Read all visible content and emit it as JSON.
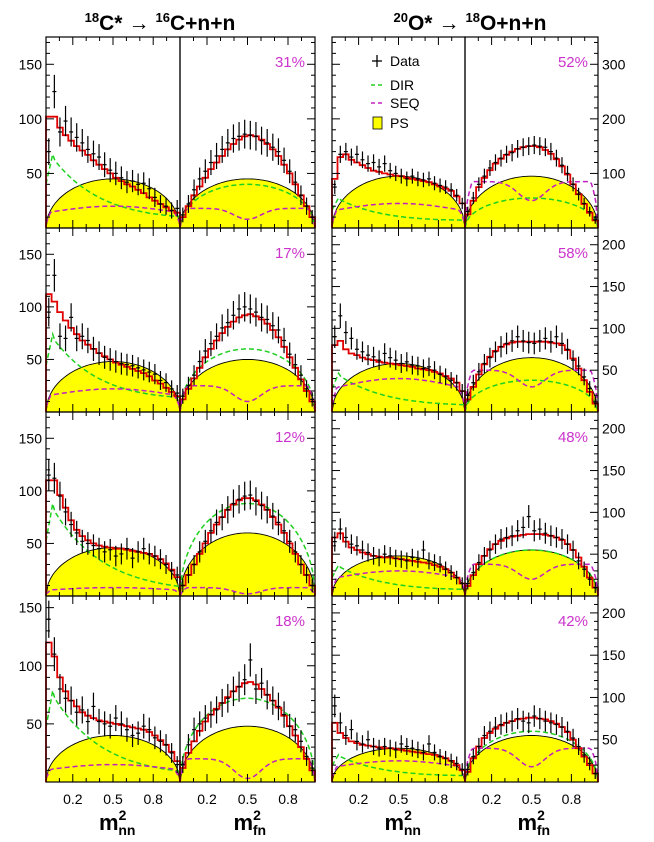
{
  "figure": {
    "titles": [
      {
        "sup1": "18",
        "a": "C*",
        "arrow": "→",
        "sup2": "16",
        "b": "C+n+n"
      },
      {
        "sup1": "20",
        "a": "O*",
        "arrow": "→",
        "sup2": "18",
        "b": "O+n+n"
      }
    ],
    "xlabels": [
      {
        "base": "m",
        "sup": "2",
        "sub": "nn"
      },
      {
        "base": "m",
        "sup": "2",
        "sub": "fn"
      },
      {
        "base": "m",
        "sup": "2",
        "sub": "nn"
      },
      {
        "base": "m",
        "sup": "2",
        "sub": "fn"
      }
    ],
    "xtick_labels": [
      "0.2",
      "0.5",
      "0.8"
    ],
    "legend": {
      "placement": "top-left of right group",
      "entries": [
        "Data",
        "DIR",
        "SEQ",
        "PS"
      ]
    },
    "colors": {
      "data": "#000000",
      "fit": "#e00000",
      "dir": "#20d020",
      "seq": "#c020c0",
      "ps": "#ffff00",
      "ps_edge": "#000000",
      "percent": "#cc33cc"
    }
  },
  "chart_data": [
    {
      "type": "histogram",
      "system": "18C*",
      "row": 1,
      "panel": "nn",
      "ylim": [
        0,
        175
      ],
      "yticks": [
        50,
        100,
        150
      ],
      "percent": null,
      "data_y": [
        70,
        125,
        88,
        98,
        88,
        83,
        78,
        72,
        68,
        65,
        58,
        53,
        50,
        46,
        42,
        43,
        40,
        41,
        36,
        28,
        22,
        20,
        16,
        18
      ],
      "fit_y": [
        102,
        102,
        92,
        85,
        80,
        75,
        71,
        67,
        62,
        58,
        54,
        50,
        46,
        43,
        40,
        38,
        35,
        32,
        28,
        25,
        22,
        19,
        16,
        14
      ],
      "dir_peak": 73,
      "dir_end": 5,
      "seq_level": 20,
      "ps_peak": 45
    },
    {
      "type": "histogram",
      "system": "18C*",
      "row": 1,
      "panel": "fn",
      "ylim": [
        0,
        175
      ],
      "yticks": [
        50,
        100,
        150
      ],
      "percent": "31%",
      "data_y": [
        12,
        22,
        35,
        45,
        52,
        60,
        66,
        72,
        78,
        82,
        84,
        86,
        85,
        84,
        80,
        78,
        74,
        70,
        62,
        52,
        42,
        30,
        20,
        10
      ],
      "fit_y": [
        10,
        20,
        30,
        38,
        46,
        54,
        60,
        66,
        72,
        77,
        81,
        84,
        85,
        84,
        81,
        77,
        72,
        66,
        58,
        50,
        40,
        30,
        20,
        10
      ],
      "dir_peak": 40,
      "seq_level": 18,
      "seq_dip": 8,
      "ps_peak": 45
    },
    {
      "type": "histogram",
      "system": "20O*",
      "row": 1,
      "panel": "nn",
      "ylim": [
        0,
        350
      ],
      "yticks": [
        100,
        200,
        300
      ],
      "percent": null,
      "data_y": [
        75,
        135,
        140,
        130,
        135,
        125,
        118,
        120,
        112,
        118,
        105,
        100,
        95,
        90,
        95,
        90,
        88,
        90,
        82,
        78,
        75,
        70,
        60,
        45
      ],
      "fit_y": [
        90,
        130,
        135,
        125,
        120,
        115,
        110,
        105,
        103,
        100,
        98,
        96,
        95,
        92,
        90,
        88,
        86,
        84,
        80,
        76,
        72,
        68,
        58,
        45
      ],
      "dir_peak": 60,
      "dir_end": 10,
      "seq_level": 45,
      "ps_peak": 95
    },
    {
      "type": "histogram",
      "system": "20O*",
      "row": 1,
      "panel": "fn",
      "ylim": [
        0,
        350
      ],
      "yticks": [
        100,
        200,
        300
      ],
      "percent": "52%",
      "data_y": [
        30,
        55,
        80,
        95,
        110,
        120,
        128,
        135,
        138,
        145,
        148,
        150,
        152,
        150,
        148,
        140,
        128,
        115,
        100,
        80,
        62,
        45,
        30,
        15
      ],
      "fit_y": [
        25,
        50,
        75,
        92,
        106,
        118,
        127,
        134,
        140,
        145,
        148,
        150,
        150,
        148,
        143,
        136,
        126,
        113,
        98,
        80,
        62,
        44,
        28,
        14
      ],
      "dir_peak": 55,
      "seq_level": 85,
      "seq_dip": 50,
      "ps_peak": 95
    },
    {
      "type": "histogram",
      "system": "18C*",
      "row": 2,
      "panel": "nn",
      "ylim": [
        0,
        175
      ],
      "yticks": [
        50,
        100,
        150
      ],
      "percent": null,
      "data_y": [
        95,
        130,
        72,
        70,
        90,
        70,
        72,
        68,
        60,
        56,
        52,
        50,
        48,
        46,
        45,
        44,
        42,
        40,
        38,
        36,
        30,
        28,
        22,
        18
      ],
      "fit_y": [
        112,
        105,
        95,
        87,
        80,
        74,
        68,
        64,
        60,
        56,
        53,
        50,
        47,
        45,
        43,
        41,
        39,
        37,
        34,
        30,
        27,
        23,
        19,
        15
      ],
      "dir_peak": 80,
      "dir_end": 8,
      "seq_level": 22,
      "ps_peak": 48
    },
    {
      "type": "histogram",
      "system": "18C*",
      "row": 2,
      "panel": "fn",
      "ylim": [
        0,
        175
      ],
      "yticks": [
        50,
        100,
        150
      ],
      "percent": "17%",
      "data_y": [
        15,
        25,
        35,
        48,
        58,
        65,
        72,
        80,
        85,
        92,
        98,
        100,
        98,
        95,
        90,
        88,
        82,
        78,
        68,
        55,
        45,
        35,
        22,
        12
      ],
      "fit_y": [
        12,
        22,
        32,
        42,
        52,
        60,
        68,
        75,
        81,
        86,
        90,
        92,
        93,
        91,
        88,
        84,
        78,
        71,
        62,
        52,
        42,
        31,
        20,
        10
      ],
      "dir_peak": 60,
      "seq_level": 25,
      "seq_dip": 10,
      "ps_peak": 50
    },
    {
      "type": "histogram",
      "system": "20O*",
      "row": 2,
      "panel": "nn",
      "ylim": [
        0,
        220
      ],
      "yticks": [
        50,
        100,
        150,
        200
      ],
      "percent": null,
      "data_y": [
        90,
        115,
        95,
        88,
        75,
        72,
        68,
        66,
        62,
        70,
        65,
        62,
        58,
        60,
        56,
        55,
        52,
        54,
        50,
        45,
        42,
        38,
        35,
        25
      ],
      "fit_y": [
        80,
        85,
        75,
        70,
        68,
        65,
        63,
        62,
        60,
        59,
        58,
        57,
        56,
        55,
        54,
        52,
        51,
        50,
        48,
        46,
        43,
        40,
        35,
        25
      ],
      "dir_peak": 50,
      "dir_end": 5,
      "seq_level": 40,
      "ps_peak": 58
    },
    {
      "type": "histogram",
      "system": "20O*",
      "row": 2,
      "panel": "fn",
      "ylim": [
        0,
        220
      ],
      "yticks": [
        50,
        100,
        150,
        200
      ],
      "percent": "58%",
      "data_y": [
        20,
        35,
        48,
        58,
        65,
        72,
        78,
        82,
        85,
        90,
        85,
        83,
        82,
        85,
        88,
        84,
        90,
        82,
        75,
        62,
        55,
        42,
        28,
        12
      ],
      "fit_y": [
        15,
        30,
        45,
        57,
        66,
        73,
        78,
        81,
        83,
        84,
        84,
        84,
        84,
        84,
        84,
        83,
        82,
        80,
        74,
        64,
        52,
        38,
        24,
        10
      ],
      "dir_peak": 38,
      "seq_level": 50,
      "seq_dip": 30,
      "ps_peak": 65
    },
    {
      "type": "histogram",
      "system": "18C*",
      "row": 3,
      "panel": "nn",
      "ylim": [
        0,
        175
      ],
      "yticks": [
        50,
        100,
        150
      ],
      "percent": null,
      "data_y": [
        115,
        112,
        95,
        80,
        68,
        60,
        52,
        50,
        48,
        45,
        42,
        44,
        38,
        40,
        45,
        36,
        42,
        45,
        40,
        38,
        35,
        30,
        24,
        20
      ],
      "fit_y": [
        110,
        110,
        96,
        84,
        72,
        63,
        57,
        53,
        50,
        48,
        47,
        46,
        45,
        45,
        44,
        43,
        42,
        41,
        40,
        38,
        35,
        31,
        25,
        18
      ],
      "dir_peak": 95,
      "dir_end": 2,
      "seq_level": 8,
      "ps_peak": 46
    },
    {
      "type": "histogram",
      "system": "18C*",
      "row": 3,
      "panel": "fn",
      "ylim": [
        0,
        175
      ],
      "yticks": [
        50,
        100,
        150
      ],
      "percent": "12%",
      "data_y": [
        10,
        20,
        30,
        42,
        52,
        62,
        70,
        75,
        82,
        88,
        92,
        95,
        96,
        90,
        86,
        82,
        76,
        70,
        62,
        52,
        42,
        30,
        20,
        10
      ],
      "fit_y": [
        10,
        20,
        30,
        40,
        50,
        60,
        68,
        75,
        82,
        87,
        91,
        93,
        93,
        91,
        87,
        82,
        75,
        68,
        60,
        50,
        40,
        30,
        20,
        10
      ],
      "dir_peak": 88,
      "seq_level": 8,
      "seq_dip": 2,
      "ps_peak": 60
    },
    {
      "type": "histogram",
      "system": "20O*",
      "row": 3,
      "panel": "nn",
      "ylim": [
        0,
        220
      ],
      "yticks": [
        50,
        100,
        150,
        200
      ],
      "percent": null,
      "data_y": [
        65,
        80,
        70,
        62,
        60,
        55,
        52,
        48,
        46,
        50,
        48,
        45,
        44,
        42,
        46,
        44,
        55,
        42,
        40,
        38,
        32,
        28,
        22,
        15
      ],
      "fit_y": [
        70,
        75,
        65,
        58,
        55,
        52,
        50,
        48,
        47,
        46,
        46,
        45,
        44,
        43,
        42,
        41,
        40,
        39,
        37,
        35,
        32,
        28,
        22,
        15
      ],
      "dir_peak": 40,
      "dir_end": 5,
      "seq_level": 30,
      "ps_peak": 48
    },
    {
      "type": "histogram",
      "system": "20O*",
      "row": 3,
      "panel": "fn",
      "ylim": [
        0,
        220
      ],
      "yticks": [
        50,
        100,
        150,
        200
      ],
      "percent": "48%",
      "data_y": [
        15,
        28,
        40,
        48,
        55,
        62,
        68,
        70,
        72,
        78,
        82,
        95,
        78,
        80,
        75,
        72,
        70,
        68,
        62,
        55,
        42,
        32,
        20,
        10
      ],
      "fit_y": [
        12,
        25,
        38,
        48,
        56,
        62,
        66,
        69,
        71,
        72,
        73,
        74,
        74,
        74,
        73,
        72,
        70,
        67,
        62,
        55,
        46,
        35,
        22,
        10
      ],
      "dir_peak": 55,
      "seq_level": 38,
      "seq_dip": 20,
      "ps_peak": 55
    },
    {
      "type": "histogram",
      "system": "18C*",
      "row": 4,
      "panel": "nn",
      "ylim": [
        0,
        160
      ],
      "yticks": [
        50,
        100,
        150
      ],
      "percent": null,
      "data_y": [
        140,
        110,
        80,
        72,
        70,
        60,
        62,
        52,
        65,
        52,
        50,
        48,
        55,
        50,
        45,
        40,
        42,
        48,
        45,
        38,
        35,
        32,
        25,
        15
      ],
      "fit_y": [
        120,
        108,
        90,
        78,
        70,
        65,
        60,
        57,
        55,
        53,
        52,
        51,
        50,
        49,
        48,
        47,
        46,
        45,
        43,
        40,
        36,
        32,
        26,
        18
      ],
      "dir_peak": 85,
      "dir_end": 3,
      "seq_level": 15,
      "ps_peak": 40
    },
    {
      "type": "histogram",
      "system": "18C*",
      "row": 4,
      "panel": "fn",
      "ylim": [
        0,
        160
      ],
      "yticks": [
        50,
        100,
        150
      ],
      "percent": "18%",
      "data_y": [
        15,
        32,
        45,
        50,
        55,
        58,
        62,
        68,
        72,
        78,
        82,
        88,
        105,
        80,
        85,
        75,
        70,
        65,
        58,
        48,
        45,
        35,
        22,
        12
      ],
      "fit_y": [
        12,
        25,
        35,
        44,
        52,
        58,
        63,
        68,
        73,
        78,
        82,
        85,
        86,
        84,
        80,
        75,
        70,
        64,
        57,
        48,
        40,
        30,
        20,
        10
      ],
      "dir_peak": 72,
      "seq_level": 20,
      "seq_dip": 3,
      "ps_peak": 48
    },
    {
      "type": "histogram",
      "system": "20O*",
      "row": 4,
      "panel": "nn",
      "ylim": [
        0,
        220
      ],
      "yticks": [
        50,
        100,
        150,
        200
      ],
      "percent": null,
      "data_y": [
        90,
        70,
        55,
        62,
        48,
        45,
        50,
        42,
        40,
        42,
        40,
        38,
        45,
        42,
        40,
        38,
        35,
        45,
        35,
        30,
        28,
        25,
        22,
        15
      ],
      "fit_y": [
        70,
        58,
        52,
        48,
        46,
        44,
        43,
        42,
        41,
        40,
        40,
        39,
        38,
        37,
        36,
        35,
        34,
        33,
        32,
        30,
        28,
        25,
        20,
        14
      ],
      "dir_peak": 35,
      "dir_end": 5,
      "seq_level": 25,
      "ps_peak": 40
    },
    {
      "type": "histogram",
      "system": "20O*",
      "row": 4,
      "panel": "fn",
      "ylim": [
        0,
        220
      ],
      "yticks": [
        50,
        100,
        150,
        200
      ],
      "percent": "42%",
      "data_y": [
        15,
        30,
        42,
        55,
        60,
        65,
        68,
        70,
        72,
        75,
        72,
        70,
        78,
        75,
        72,
        70,
        68,
        65,
        60,
        52,
        42,
        32,
        22,
        10
      ],
      "fit_y": [
        12,
        28,
        42,
        52,
        58,
        63,
        67,
        70,
        72,
        74,
        75,
        76,
        76,
        75,
        74,
        72,
        69,
        65,
        59,
        50,
        40,
        30,
        20,
        10
      ],
      "dir_peak": 60,
      "seq_level": 40,
      "seq_dip": 18,
      "ps_peak": 55
    }
  ]
}
